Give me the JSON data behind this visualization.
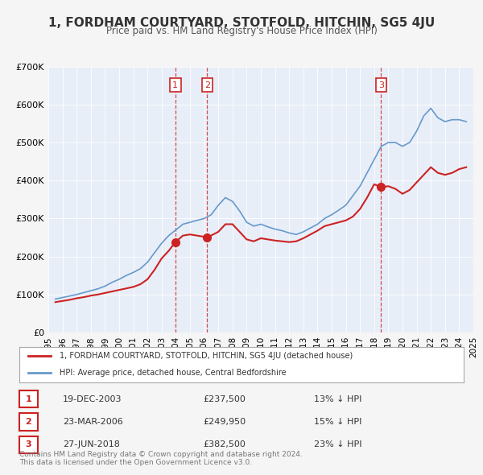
{
  "title": "1, FORDHAM COURTYARD, STOTFOLD, HITCHIN, SG5 4JU",
  "subtitle": "Price paid vs. HM Land Registry's House Price Index (HPI)",
  "xlabel": "",
  "ylabel": "",
  "background_color": "#f0f4ff",
  "plot_bg_color": "#e8eef8",
  "red_line_label": "1, FORDHAM COURTYARD, STOTFOLD, HITCHIN, SG5 4JU (detached house)",
  "blue_line_label": "HPI: Average price, detached house, Central Bedfordshire",
  "footer": "Contains HM Land Registry data © Crown copyright and database right 2024.\nThis data is licensed under the Open Government Licence v3.0.",
  "transactions": [
    {
      "num": 1,
      "date": "19-DEC-2003",
      "price": 237500,
      "pct": "13%",
      "year": 2003.96
    },
    {
      "num": 2,
      "date": "23-MAR-2006",
      "price": 249950,
      "pct": "15%",
      "year": 2006.22
    },
    {
      "num": 3,
      "date": "27-JUN-2018",
      "price": 382500,
      "pct": "23%",
      "year": 2018.49
    }
  ],
  "hpi_data": {
    "years": [
      1995.5,
      1996.0,
      1996.5,
      1997.0,
      1997.5,
      1998.0,
      1998.5,
      1999.0,
      1999.5,
      2000.0,
      2000.5,
      2001.0,
      2001.5,
      2002.0,
      2002.5,
      2003.0,
      2003.5,
      2004.0,
      2004.5,
      2005.0,
      2005.5,
      2006.0,
      2006.5,
      2007.0,
      2007.5,
      2008.0,
      2008.5,
      2009.0,
      2009.5,
      2010.0,
      2010.5,
      2011.0,
      2011.5,
      2012.0,
      2012.5,
      2013.0,
      2013.5,
      2014.0,
      2014.5,
      2015.0,
      2015.5,
      2016.0,
      2016.5,
      2017.0,
      2017.5,
      2018.0,
      2018.5,
      2019.0,
      2019.5,
      2020.0,
      2020.5,
      2021.0,
      2021.5,
      2022.0,
      2022.5,
      2023.0,
      2023.5,
      2024.0,
      2024.5
    ],
    "values": [
      88000,
      92000,
      96000,
      100000,
      105000,
      110000,
      115000,
      122000,
      132000,
      140000,
      150000,
      158000,
      168000,
      185000,
      210000,
      235000,
      255000,
      270000,
      285000,
      290000,
      295000,
      300000,
      310000,
      335000,
      355000,
      345000,
      320000,
      290000,
      280000,
      285000,
      278000,
      272000,
      268000,
      262000,
      258000,
      265000,
      275000,
      285000,
      300000,
      310000,
      322000,
      335000,
      360000,
      385000,
      420000,
      455000,
      490000,
      500000,
      500000,
      490000,
      500000,
      530000,
      570000,
      590000,
      565000,
      555000,
      560000,
      560000,
      555000
    ]
  },
  "red_data": {
    "years": [
      1995.5,
      1996.0,
      1996.5,
      1997.0,
      1997.5,
      1998.0,
      1998.5,
      1999.0,
      1999.5,
      2000.0,
      2000.5,
      2001.0,
      2001.5,
      2002.0,
      2002.5,
      2003.0,
      2003.5,
      2003.96,
      2004.5,
      2005.0,
      2005.5,
      2006.0,
      2006.22,
      2007.0,
      2007.5,
      2008.0,
      2008.5,
      2009.0,
      2009.5,
      2010.0,
      2010.5,
      2011.0,
      2011.5,
      2012.0,
      2012.5,
      2013.0,
      2013.5,
      2014.0,
      2014.5,
      2015.0,
      2015.5,
      2016.0,
      2016.5,
      2017.0,
      2017.5,
      2018.0,
      2018.49,
      2019.0,
      2019.5,
      2020.0,
      2020.5,
      2021.0,
      2021.5,
      2022.0,
      2022.5,
      2023.0,
      2023.5,
      2024.0,
      2024.5
    ],
    "values": [
      80000,
      83000,
      86000,
      90000,
      93000,
      97000,
      100000,
      104000,
      108000,
      112000,
      116000,
      120000,
      127000,
      140000,
      165000,
      195000,
      215000,
      237500,
      255000,
      258000,
      255000,
      252000,
      249950,
      265000,
      285000,
      285000,
      265000,
      245000,
      240000,
      248000,
      245000,
      242000,
      240000,
      238000,
      240000,
      248000,
      258000,
      268000,
      280000,
      285000,
      290000,
      295000,
      305000,
      325000,
      355000,
      390000,
      382500,
      385000,
      378000,
      365000,
      375000,
      395000,
      415000,
      435000,
      420000,
      415000,
      420000,
      430000,
      435000
    ]
  },
  "ylim": [
    0,
    700000
  ],
  "xlim": [
    1995,
    2025
  ],
  "yticks": [
    0,
    100000,
    200000,
    300000,
    400000,
    500000,
    600000,
    700000
  ],
  "ytick_labels": [
    "£0",
    "£100K",
    "£200K",
    "£300K",
    "£400K",
    "£500K",
    "£600K",
    "£700K"
  ],
  "xticks": [
    1995,
    1996,
    1997,
    1998,
    1999,
    2000,
    2001,
    2002,
    2003,
    2004,
    2005,
    2006,
    2007,
    2008,
    2009,
    2010,
    2011,
    2012,
    2013,
    2014,
    2015,
    2016,
    2017,
    2018,
    2019,
    2020,
    2021,
    2022,
    2023,
    2024,
    2025
  ]
}
